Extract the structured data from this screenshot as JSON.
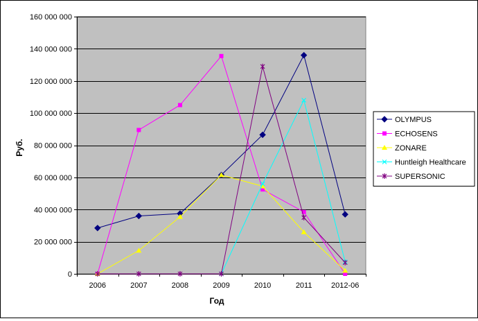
{
  "chart_data": {
    "type": "line",
    "title": "",
    "xlabel": "Год",
    "ylabel": "Руб.",
    "categories": [
      "2006",
      "2007",
      "2008",
      "2009",
      "2010",
      "2011",
      "2012-06"
    ],
    "ylim": [
      0,
      160000000
    ],
    "yticks": [
      0,
      20000000,
      40000000,
      60000000,
      80000000,
      100000000,
      120000000,
      140000000,
      160000000
    ],
    "ytick_labels": [
      "0",
      "20 000 000",
      "40 000 000",
      "60 000 000",
      "80 000 000",
      "100 000 000",
      "120 000 000",
      "140 000 000",
      "160 000 000"
    ],
    "grid": "horizontal",
    "plot_background": "#c0c0c0",
    "legend_position": "right",
    "series": [
      {
        "name": "OLYMPUS",
        "color": "#000080",
        "marker": "diamond",
        "values": [
          28500000,
          36000000,
          37500000,
          61500000,
          86500000,
          136000000,
          37000000
        ]
      },
      {
        "name": "ECHOSENS",
        "color": "#ff00ff",
        "marker": "square",
        "values": [
          0,
          89500000,
          105000000,
          135500000,
          52500000,
          38500000,
          0
        ]
      },
      {
        "name": "ZONARE",
        "color": "#ffff00",
        "marker": "triangle",
        "values": [
          0,
          14500000,
          35500000,
          61500000,
          54500000,
          26000000,
          2000000
        ]
      },
      {
        "name": "Huntleigh Healthcare",
        "color": "#00ffff",
        "marker": "x",
        "values": [
          null,
          null,
          null,
          0,
          56000000,
          108000000,
          7500000
        ]
      },
      {
        "name": "SUPERSONIC",
        "color": "#800080",
        "marker": "star",
        "values": [
          0,
          0,
          0,
          0,
          129000000,
          35000000,
          7000000
        ]
      }
    ]
  }
}
